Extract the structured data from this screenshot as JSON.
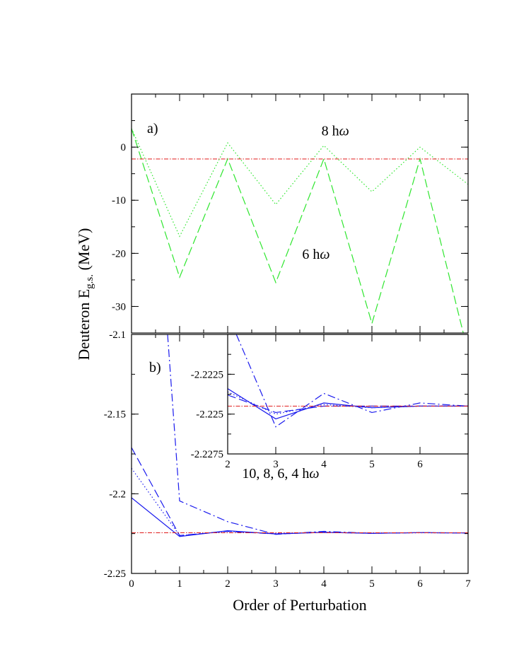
{
  "figure": {
    "ylabel_main": "Deuteron E",
    "ylabel_sub": "g.s.",
    "ylabel_unit": " (MeV)",
    "xlabel": "Order of Perturbation"
  },
  "colors": {
    "green": "#2ee62e",
    "blue": "#1a1aee",
    "red": "#e01a1a"
  },
  "chart_data": [
    {
      "type": "line",
      "panel_label": "a)",
      "xlim": [
        0,
        7
      ],
      "ylim": [
        -35,
        10
      ],
      "xticks": [],
      "yticks": [
        0,
        -10,
        -20,
        -30
      ],
      "ytick_labels": [
        "0",
        "-10",
        "-20",
        "-30"
      ],
      "annotations": [
        {
          "text": "8 h",
          "omega": "ω",
          "x": 3.95,
          "y": 2.2
        },
        {
          "text": "6 h",
          "omega": "ω",
          "x": 3.55,
          "y": -21.0
        }
      ],
      "series": [
        {
          "x": [
            0,
            1,
            2,
            3,
            4,
            5,
            6,
            7
          ],
          "values": [
            3.5,
            -16.8,
            0.8,
            -10.8,
            0.3,
            -8.4,
            0.0,
            -7.0
          ],
          "style": "dotted",
          "color": "#2ee62e"
        },
        {
          "x": [
            0,
            1,
            2,
            3,
            4,
            5,
            6,
            6.9
          ],
          "values": [
            3.5,
            -24.5,
            -2.2,
            -25.5,
            -2.2,
            -33.2,
            -2.2,
            -35.0
          ],
          "style": "dashed",
          "color": "#2ee62e"
        },
        {
          "x": [
            0,
            7
          ],
          "values": [
            -2.2245,
            -2.2245
          ],
          "style": "dashdot-fine",
          "color": "#e01a1a"
        }
      ]
    },
    {
      "type": "line",
      "panel_label": "b)",
      "xlim": [
        0,
        7
      ],
      "ylim": [
        -2.25,
        -2.1
      ],
      "xticks": [
        0,
        1,
        2,
        3,
        4,
        5,
        6,
        7
      ],
      "xtick_labels": [
        "0",
        "1",
        "2",
        "3",
        "4",
        "5",
        "6",
        "7"
      ],
      "yticks": [
        -2.1,
        -2.15,
        -2.2,
        -2.25
      ],
      "ytick_labels": [
        "-2.1",
        "-2.15",
        "-2.2",
        "-2.25"
      ],
      "annotations": [
        {
          "text": "10, 8, 6, 4 h",
          "omega": "ω",
          "x": 2.3,
          "y": -2.19
        }
      ],
      "series": [
        {
          "x": [
            0,
            1,
            2,
            3,
            4,
            5,
            6,
            7
          ],
          "values": [
            -2.2025,
            -2.2268,
            -2.2232,
            -2.2252,
            -2.2242,
            -2.2248,
            -2.2244,
            -2.2246
          ],
          "style": "solid",
          "color": "#1a1aee"
        },
        {
          "x": [
            0,
            1,
            2,
            3,
            4,
            5,
            6,
            7
          ],
          "values": [
            -2.184,
            -2.2262,
            -2.2236,
            -2.225,
            -2.2243,
            -2.2247,
            -2.2245,
            -2.2245
          ],
          "style": "dotted",
          "color": "#1a1aee"
        },
        {
          "x": [
            0,
            1,
            2,
            3,
            4,
            5,
            6,
            7
          ],
          "values": [
            -2.171,
            -2.2262,
            -2.2236,
            -2.2252,
            -2.2242,
            -2.2248,
            -2.2244,
            -2.2246
          ],
          "style": "dashed",
          "color": "#1a1aee"
        },
        {
          "x": [
            0.75,
            1,
            2,
            3,
            4,
            5,
            6,
            7
          ],
          "values": [
            -2.1,
            -2.2045,
            -2.2175,
            -2.2255,
            -2.2236,
            -2.2248,
            -2.2244,
            -2.2246
          ],
          "style": "dashdot",
          "color": "#1a1aee"
        },
        {
          "x": [
            0,
            7
          ],
          "values": [
            -2.2245,
            -2.2245
          ],
          "style": "dashdot-fine",
          "color": "#e01a1a"
        }
      ]
    },
    {
      "type": "line",
      "panel_label": "",
      "xlim": [
        2,
        7
      ],
      "ylim": [
        -2.2275,
        -2.22
      ],
      "xticks": [
        2,
        3,
        4,
        5,
        6
      ],
      "xtick_labels": [
        "2",
        "3",
        "4",
        "5",
        "6"
      ],
      "yticks": [
        -2.2225,
        -2.225,
        -2.2275
      ],
      "ytick_labels": [
        "-2.2225",
        "-2.225",
        "-2.2275"
      ],
      "annotations": [],
      "series": [
        {
          "x": [
            2,
            3,
            4,
            5,
            6,
            7
          ],
          "values": [
            -2.2234,
            -2.2253,
            -2.2243,
            -2.2246,
            -2.2245,
            -2.2245
          ],
          "style": "solid",
          "color": "#1a1aee"
        },
        {
          "x": [
            2,
            3,
            4,
            5,
            6,
            7
          ],
          "values": [
            -2.2236,
            -2.225,
            -2.2244,
            -2.2246,
            -2.2245,
            -2.2245
          ],
          "style": "dotted",
          "color": "#1a1aee"
        },
        {
          "x": [
            2,
            3,
            4,
            5,
            6,
            7
          ],
          "values": [
            -2.2238,
            -2.2249,
            -2.2245,
            -2.2245,
            -2.2245,
            -2.2245
          ],
          "style": "dashed",
          "color": "#1a1aee"
        },
        {
          "x": [
            2.18,
            3,
            4,
            5,
            6,
            7
          ],
          "values": [
            -2.22,
            -2.2258,
            -2.2237,
            -2.2249,
            -2.2243,
            -2.2245
          ],
          "style": "dashdot",
          "color": "#1a1aee"
        },
        {
          "x": [
            2,
            7
          ],
          "values": [
            -2.2245,
            -2.2245
          ],
          "style": "dashdot-fine",
          "color": "#e01a1a"
        }
      ]
    }
  ]
}
